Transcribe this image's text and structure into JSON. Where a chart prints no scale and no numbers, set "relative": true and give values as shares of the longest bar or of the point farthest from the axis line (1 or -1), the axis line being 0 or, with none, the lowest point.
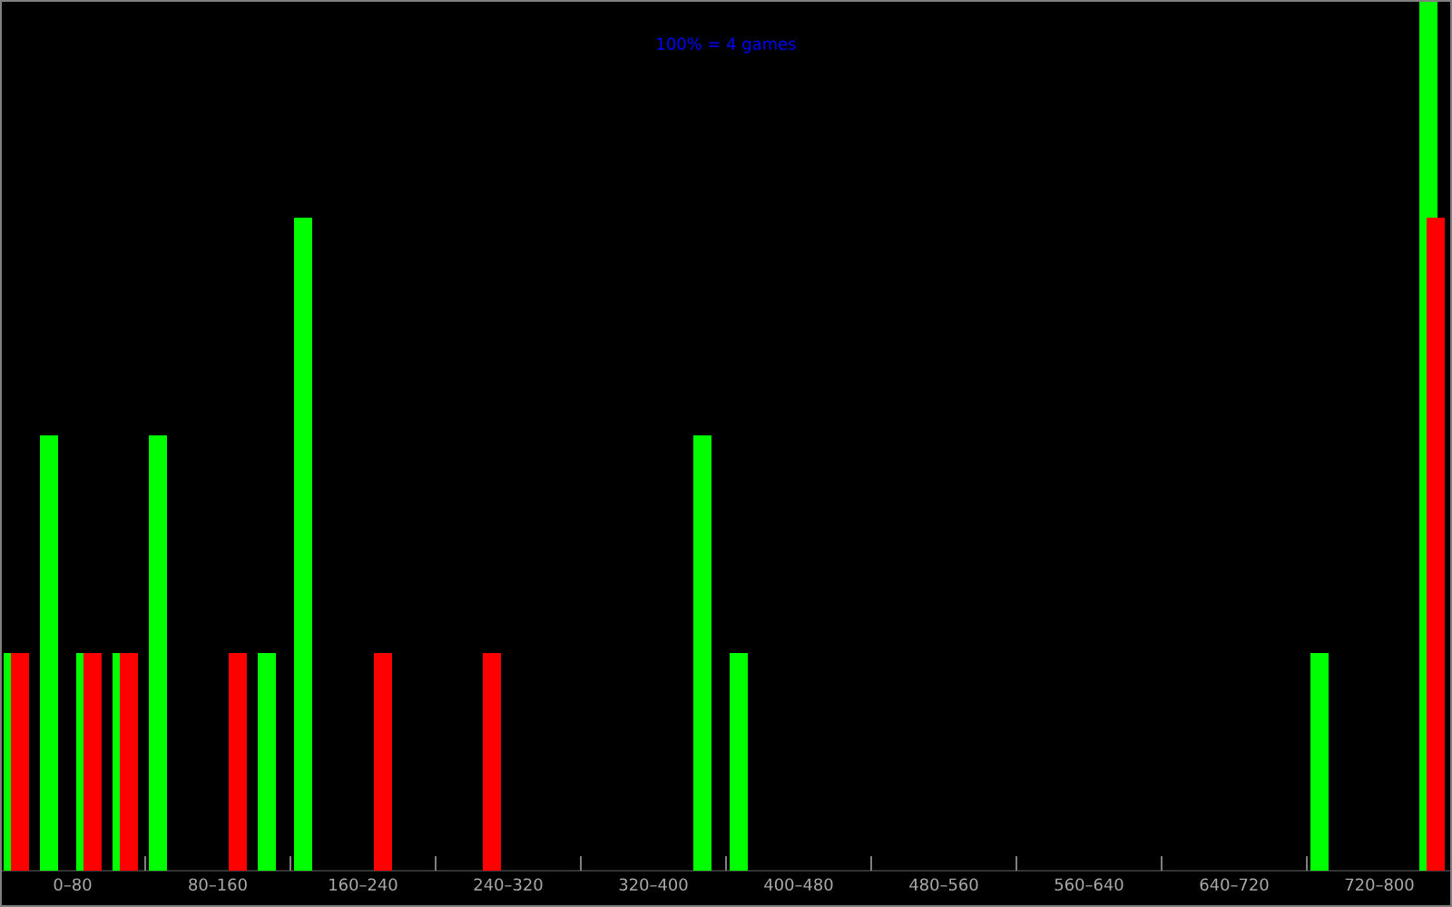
{
  "chart_data": {
    "type": "bar",
    "relative": true,
    "annotations": [
      "100% = 4 games"
    ],
    "categories": [
      null,
      null,
      "0–80",
      null,
      null,
      null,
      "80–160",
      null,
      null,
      null,
      "160–240",
      null,
      null,
      null,
      "240–320",
      null,
      null,
      null,
      "320–400",
      null,
      null,
      null,
      "400–480",
      null,
      null,
      null,
      "480–560",
      null,
      null,
      null,
      "560–640",
      null,
      null,
      null,
      "640–720",
      null,
      null,
      null,
      "720–800",
      null
    ],
    "series": [
      {
        "color": "#00ff00",
        "values": [
          0.25,
          0.5,
          0.25,
          0.25,
          0.5,
          null,
          null,
          0.25,
          0.75,
          null,
          null,
          null,
          null,
          null,
          null,
          null,
          null,
          null,
          null,
          0.5,
          0.25,
          null,
          null,
          null,
          null,
          null,
          null,
          null,
          null,
          null,
          null,
          null,
          null,
          null,
          null,
          null,
          0.25,
          null,
          null,
          1
        ]
      },
      {
        "color": "#ff0000",
        "values": [
          0.25,
          null,
          0.25,
          0.25,
          null,
          null,
          0.25,
          null,
          null,
          null,
          0.25,
          null,
          null,
          0.25,
          null,
          null,
          null,
          null,
          null,
          null,
          null,
          null,
          null,
          null,
          null,
          null,
          null,
          null,
          null,
          null,
          null,
          null,
          null,
          null,
          null,
          null,
          null,
          null,
          null,
          0.75
        ]
      }
    ]
  }
}
